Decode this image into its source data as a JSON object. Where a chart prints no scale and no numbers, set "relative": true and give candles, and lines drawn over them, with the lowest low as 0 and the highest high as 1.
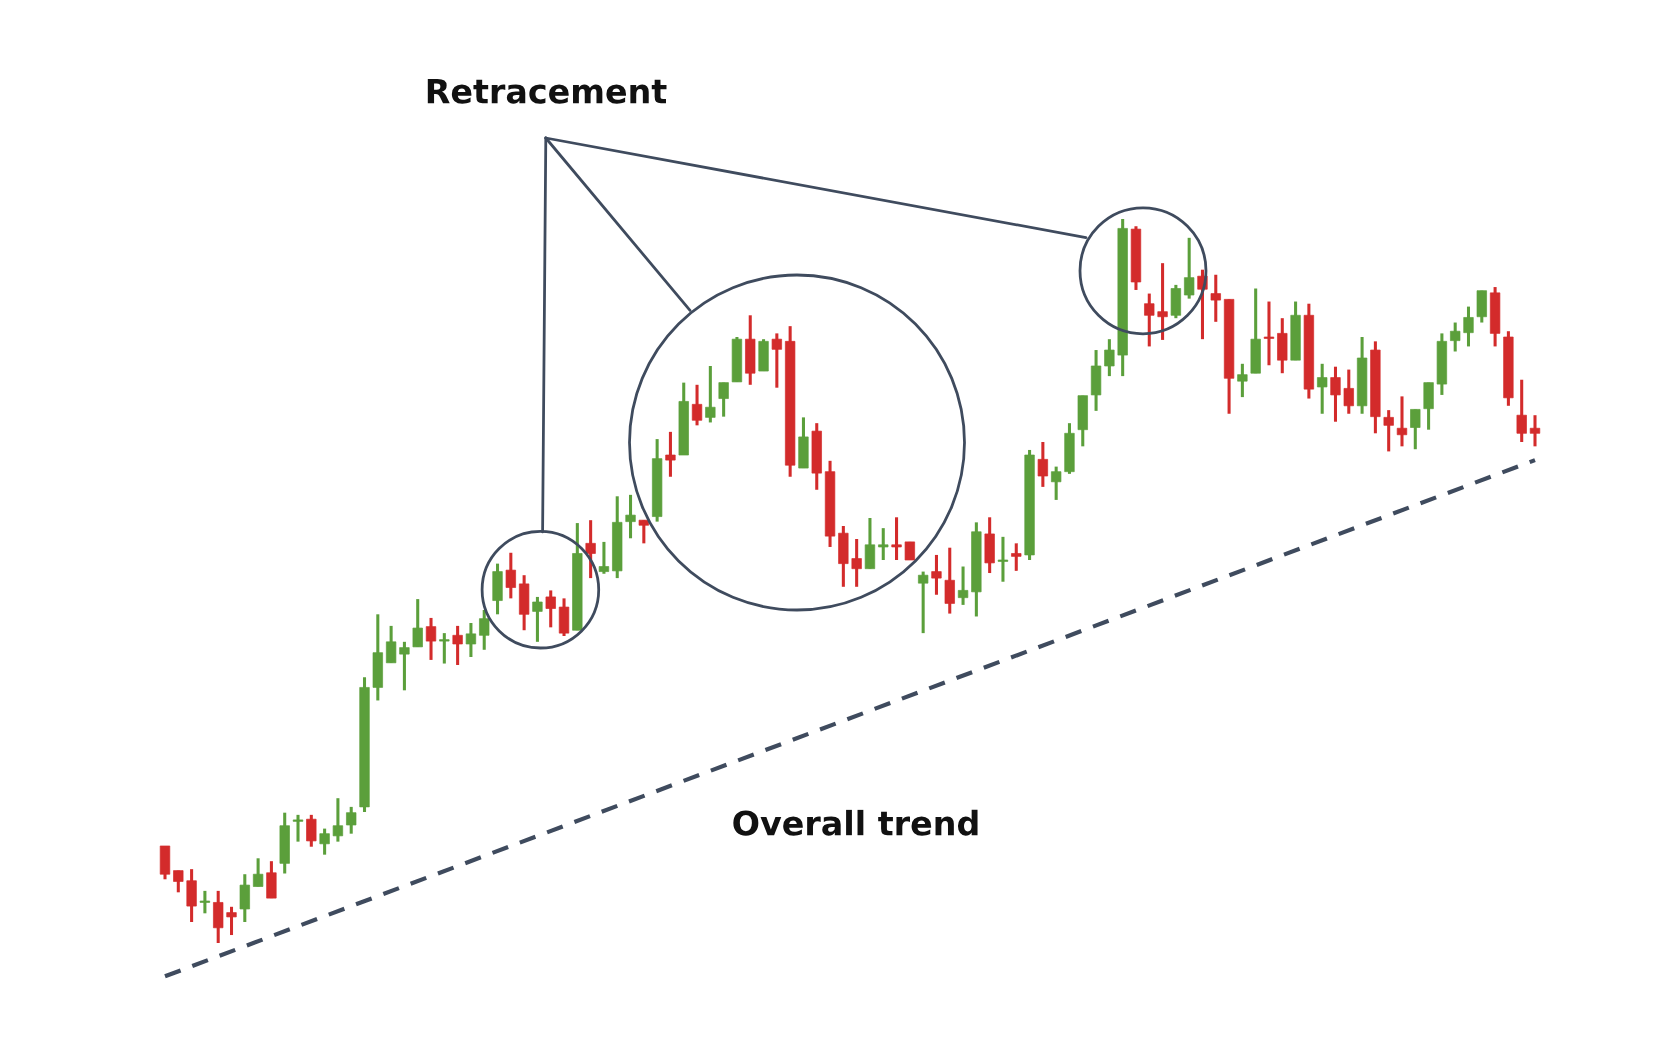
{
  "chart_data": {
    "type": "candlestick",
    "relative": true,
    "legend": false,
    "categories": [
      null,
      null,
      null,
      null,
      null,
      null,
      null,
      null,
      null,
      null,
      null,
      null,
      null,
      null,
      null,
      null,
      null,
      null,
      null,
      null,
      null,
      null,
      null,
      null,
      null,
      null,
      null,
      null,
      null,
      null,
      null,
      null,
      null,
      null,
      null,
      null,
      null,
      null,
      null,
      null,
      null,
      null,
      null,
      null,
      null,
      null,
      null,
      null,
      null,
      null,
      null,
      null,
      null,
      null,
      null,
      null,
      null,
      null,
      null,
      null,
      null,
      null,
      null,
      null,
      null,
      null,
      null,
      null,
      null,
      null,
      null,
      null,
      null,
      null,
      null,
      null,
      null,
      null,
      null,
      null,
      null,
      null,
      null,
      null,
      null,
      null,
      null,
      null,
      null,
      null,
      null,
      null,
      null,
      null,
      null,
      null,
      null,
      null,
      null,
      null,
      null,
      null,
      null,
      null
    ],
    "annotations": [
      "Retracement"
    ],
    "series": [
      {
        "colors": [
          "#d32b2b",
          "#d32b2b",
          "#d32b2b",
          "#5b9f3b",
          "#d32b2b",
          "#d32b2b",
          "#5b9f3b",
          "#5b9f3b",
          "#d32b2b",
          "#5b9f3b",
          "#5b9f3b",
          "#d32b2b",
          "#5b9f3b",
          "#5b9f3b",
          "#5b9f3b",
          "#5b9f3b",
          "#5b9f3b",
          "#5b9f3b",
          "#5b9f3b",
          "#5b9f3b",
          "#d32b2b",
          "#5b9f3b",
          "#d32b2b",
          "#5b9f3b",
          "#5b9f3b",
          "#5b9f3b",
          "#d32b2b",
          "#d32b2b",
          "#5b9f3b",
          "#d32b2b",
          "#d32b2b",
          "#5b9f3b",
          "#d32b2b",
          "#5b9f3b",
          "#5b9f3b",
          "#5b9f3b",
          "#d32b2b",
          "#5b9f3b",
          "#d32b2b",
          "#5b9f3b",
          "#d32b2b",
          "#5b9f3b",
          "#5b9f3b",
          "#5b9f3b",
          "#d32b2b",
          "#5b9f3b",
          "#d32b2b",
          "#d32b2b",
          "#5b9f3b",
          "#d32b2b",
          "#d32b2b",
          "#d32b2b",
          "#d32b2b",
          "#5b9f3b",
          "#5b9f3b",
          "#d32b2b",
          "#d32b2b",
          "#5b9f3b",
          "#d32b2b",
          "#d32b2b",
          "#5b9f3b",
          "#5b9f3b",
          "#d32b2b",
          "#5b9f3b",
          "#d32b2b",
          "#5b9f3b",
          "#d32b2b",
          "#5b9f3b",
          "#5b9f3b",
          "#5b9f3b",
          "#5b9f3b",
          "#5b9f3b",
          "#5b9f3b",
          "#d32b2b",
          "#d32b2b",
          "#d32b2b",
          "#5b9f3b",
          "#5b9f3b",
          "#d32b2b",
          "#d32b2b",
          "#d32b2b",
          "#5b9f3b",
          "#5b9f3b",
          "#d32b2b",
          "#d32b2b",
          "#5b9f3b",
          "#d32b2b",
          "#5b9f3b",
          "#d32b2b",
          "#d32b2b",
          "#5b9f3b",
          "#d32b2b",
          "#d32b2b",
          "#d32b2b",
          "#5b9f3b",
          "#5b9f3b",
          "#5b9f3b",
          "#5b9f3b",
          "#5b9f3b",
          "#5b9f3b",
          "#d32b2b",
          "#d32b2b",
          "#d32b2b",
          "#d32b2b"
        ],
        "ohlc": [
          [
            0.134,
            0.134,
            0.088,
            0.095
          ],
          [
            0.1,
            0.1,
            0.07,
            0.085
          ],
          [
            0.086,
            0.102,
            0.029,
            0.051
          ],
          [
            0.056,
            0.072,
            0.041,
            0.058
          ],
          [
            0.056,
            0.072,
            0,
            0.021
          ],
          [
            0.042,
            0.05,
            0.011,
            0.036
          ],
          [
            0.047,
            0.095,
            0.029,
            0.08
          ],
          [
            0.078,
            0.117,
            0.078,
            0.095
          ],
          [
            0.097,
            0.113,
            0.062,
            0.062
          ],
          [
            0.11,
            0.18,
            0.096,
            0.162
          ],
          [
            0.168,
            0.177,
            0.14,
            0.17
          ],
          [
            0.171,
            0.177,
            0.133,
            0.141
          ],
          [
            0.137,
            0.158,
            0.122,
            0.151
          ],
          [
            0.148,
            0.2,
            0.14,
            0.162
          ],
          [
            0.163,
            0.188,
            0.151,
            0.18
          ],
          [
            0.188,
            0.367,
            0.181,
            0.353
          ],
          [
            0.353,
            0.454,
            0.335,
            0.401
          ],
          [
            0.387,
            0.438,
            0.387,
            0.416
          ],
          [
            0.399,
            0.416,
            0.349,
            0.408
          ],
          [
            0.409,
            0.475,
            0.409,
            0.435
          ],
          [
            0.437,
            0.449,
            0.391,
            0.417
          ],
          [
            0.417,
            0.428,
            0.386,
            0.419
          ],
          [
            0.425,
            0.438,
            0.384,
            0.413
          ],
          [
            0.413,
            0.442,
            0.395,
            0.427
          ],
          [
            0.425,
            0.46,
            0.405,
            0.448
          ],
          [
            0.473,
            0.524,
            0.454,
            0.513
          ],
          [
            0.515,
            0.539,
            0.476,
            0.491
          ],
          [
            0.496,
            0.508,
            0.432,
            0.454
          ],
          [
            0.458,
            0.478,
            0.416,
            0.471
          ],
          [
            0.478,
            0.487,
            0.436,
            0.462
          ],
          [
            0.464,
            0.476,
            0.424,
            0.428
          ],
          [
            0.432,
            0.58,
            0.432,
            0.538
          ],
          [
            0.552,
            0.584,
            0.504,
            0.538
          ],
          [
            0.513,
            0.554,
            0.51,
            0.52
          ],
          [
            0.514,
            0.617,
            0.504,
            0.581
          ],
          [
            0.582,
            0.619,
            0.559,
            0.591
          ],
          [
            0.584,
            0.584,
            0.552,
            0.577
          ],
          [
            0.589,
            0.696,
            0.582,
            0.669
          ],
          [
            0.674,
            0.706,
            0.644,
            0.667
          ],
          [
            0.674,
            0.774,
            0.674,
            0.748
          ],
          [
            0.744,
            0.771,
            0.715,
            0.722
          ],
          [
            0.726,
            0.797,
            0.719,
            0.74
          ],
          [
            0.752,
            0.774,
            0.727,
            0.774
          ],
          [
            0.775,
            0.837,
            0.775,
            0.834
          ],
          [
            0.834,
            0.867,
            0.771,
            0.787
          ],
          [
            0.79,
            0.834,
            0.79,
            0.831
          ],
          [
            0.834,
            0.842,
            0.767,
            0.82
          ],
          [
            0.831,
            0.852,
            0.644,
            0.66
          ],
          [
            0.656,
            0.726,
            0.656,
            0.699
          ],
          [
            0.707,
            0.718,
            0.626,
            0.649
          ],
          [
            0.651,
            0.666,
            0.547,
            0.562
          ],
          [
            0.566,
            0.576,
            0.492,
            0.524
          ],
          [
            0.531,
            0.558,
            0.492,
            0.517
          ],
          [
            0.517,
            0.587,
            0.517,
            0.55
          ],
          [
            0.547,
            0.573,
            0.529,
            0.55
          ],
          [
            0.55,
            0.588,
            0.529,
            0.547
          ],
          [
            0.554,
            0.554,
            0.529,
            0.529
          ],
          [
            0.497,
            0.513,
            0.428,
            0.508
          ],
          [
            0.513,
            0.536,
            0.481,
            0.504
          ],
          [
            0.501,
            0.546,
            0.455,
            0.469
          ],
          [
            0.477,
            0.52,
            0.467,
            0.487
          ],
          [
            0.485,
            0.581,
            0.451,
            0.568
          ],
          [
            0.565,
            0.588,
            0.511,
            0.525
          ],
          [
            0.527,
            0.561,
            0.499,
            0.529
          ],
          [
            0.538,
            0.552,
            0.514,
            0.534
          ],
          [
            0.536,
            0.681,
            0.529,
            0.674
          ],
          [
            0.668,
            0.692,
            0.63,
            0.645
          ],
          [
            0.637,
            0.658,
            0.612,
            0.651
          ],
          [
            0.651,
            0.718,
            0.648,
            0.704
          ],
          [
            0.709,
            0.756,
            0.686,
            0.756
          ],
          [
            0.757,
            0.819,
            0.735,
            0.797
          ],
          [
            0.797,
            0.834,
            0.783,
            0.819
          ],
          [
            0.812,
            1,
            0.783,
            0.987
          ],
          [
            0.986,
            0.99,
            0.902,
            0.913
          ],
          [
            0.883,
            0.897,
            0.824,
            0.867
          ],
          [
            0.872,
            0.939,
            0.833,
            0.865
          ],
          [
            0.867,
            0.909,
            0.863,
            0.904
          ],
          [
            0.895,
            0.974,
            0.89,
            0.919
          ],
          [
            0.921,
            0.93,
            0.834,
            0.903
          ],
          [
            0.897,
            0.923,
            0.858,
            0.888
          ],
          [
            0.889,
            0.889,
            0.731,
            0.78
          ],
          [
            0.776,
            0.8,
            0.754,
            0.785
          ],
          [
            0.787,
            0.904,
            0.787,
            0.834
          ],
          [
            0.837,
            0.886,
            0.798,
            0.835
          ],
          [
            0.842,
            0.863,
            0.787,
            0.805
          ],
          [
            0.805,
            0.886,
            0.805,
            0.867
          ],
          [
            0.867,
            0.883,
            0.752,
            0.765
          ],
          [
            0.768,
            0.8,
            0.731,
            0.781
          ],
          [
            0.781,
            0.796,
            0.72,
            0.757
          ],
          [
            0.766,
            0.792,
            0.731,
            0.742
          ],
          [
            0.742,
            0.837,
            0.731,
            0.808
          ],
          [
            0.819,
            0.831,
            0.704,
            0.727
          ],
          [
            0.726,
            0.736,
            0.679,
            0.715
          ],
          [
            0.711,
            0.755,
            0.686,
            0.702
          ],
          [
            0.712,
            0.737,
            0.682,
            0.737
          ],
          [
            0.738,
            0.774,
            0.709,
            0.774
          ],
          [
            0.772,
            0.842,
            0.757,
            0.831
          ],
          [
            0.832,
            0.857,
            0.817,
            0.845
          ],
          [
            0.843,
            0.879,
            0.824,
            0.864
          ],
          [
            0.865,
            0.901,
            0.857,
            0.901
          ],
          [
            0.898,
            0.906,
            0.824,
            0.842
          ],
          [
            0.837,
            0.845,
            0.742,
            0.753
          ],
          [
            0.729,
            0.778,
            0.692,
            0.704
          ],
          [
            0.711,
            0.729,
            0.686,
            0.704
          ]
        ]
      },
      {
        "type": "line",
        "name": "Overall trend",
        "color": "#3f4b5e",
        "line_style": "dashed",
        "values": [
          -0.046,
          null,
          null,
          null,
          null,
          null,
          null,
          null,
          null,
          null,
          null,
          null,
          null,
          null,
          null,
          null,
          null,
          null,
          null,
          null,
          null,
          null,
          null,
          null,
          null,
          null,
          null,
          null,
          null,
          null,
          null,
          null,
          null,
          null,
          null,
          null,
          null,
          null,
          null,
          null,
          null,
          null,
          null,
          null,
          null,
          null,
          null,
          null,
          null,
          null,
          null,
          null,
          null,
          null,
          null,
          null,
          null,
          null,
          null,
          null,
          null,
          null,
          null,
          null,
          null,
          null,
          null,
          null,
          null,
          null,
          null,
          null,
          null,
          null,
          null,
          null,
          null,
          null,
          null,
          null,
          null,
          null,
          null,
          null,
          null,
          null,
          null,
          null,
          null,
          null,
          null,
          null,
          null,
          null,
          null,
          null,
          null,
          null,
          null,
          null,
          null,
          null,
          null,
          0.667
        ]
      }
    ]
  }
}
